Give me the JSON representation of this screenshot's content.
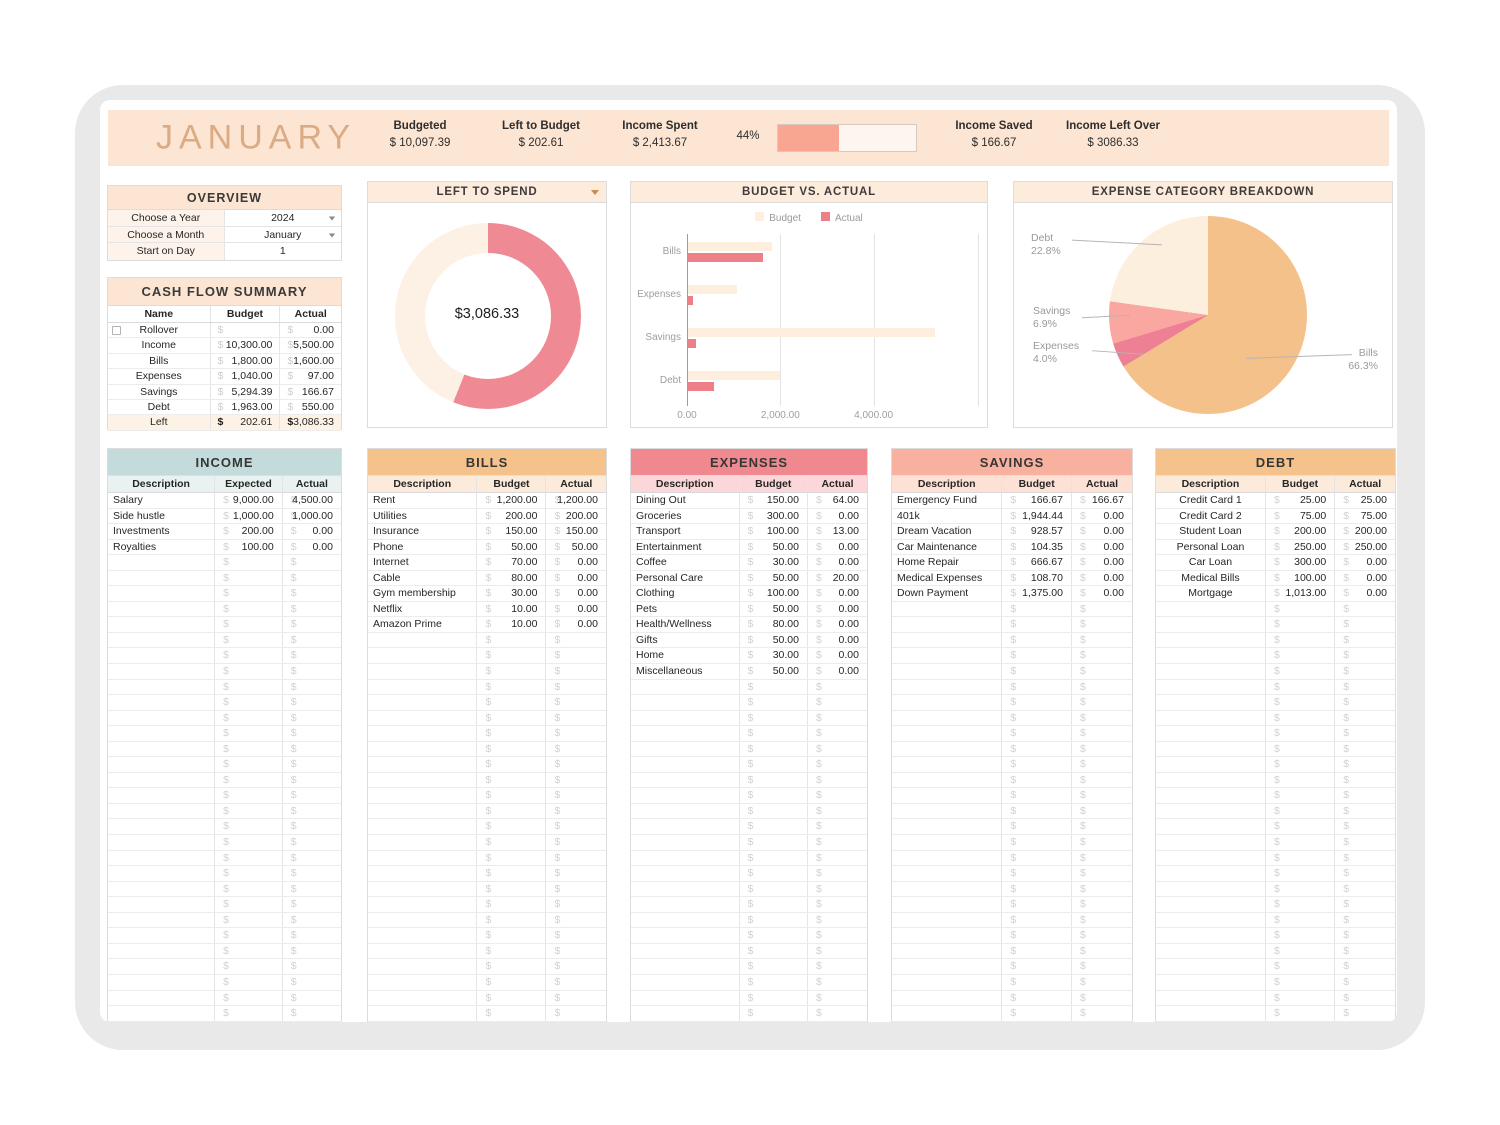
{
  "header": {
    "month": "JANUARY",
    "stats": [
      {
        "label": "Budgeted",
        "value": "$ 10,097.39"
      },
      {
        "label": "Left to Budget",
        "value": "$ 202.61"
      },
      {
        "label": "Income Spent",
        "value": "$ 2,413.67"
      }
    ],
    "progress": {
      "percent": 44,
      "percent_label": "44%",
      "bar_color": "#f8a592"
    },
    "stats2": [
      {
        "label": "Income Saved",
        "value": "$ 166.67"
      },
      {
        "label": "Income Left Over",
        "value": "$ 3086.33"
      }
    ]
  },
  "overview": {
    "title": "OVERVIEW",
    "rows": [
      {
        "label": "Choose a Year",
        "value": "2024",
        "dropdown": true
      },
      {
        "label": "Choose a Month",
        "value": "January",
        "dropdown": true
      },
      {
        "label": "Start on Day",
        "value": "1",
        "dropdown": false
      }
    ]
  },
  "cash_flow": {
    "title": "CASH FLOW SUMMARY",
    "columns": [
      "Name",
      "Budget",
      "Actual"
    ],
    "rows": [
      {
        "name": "Rollover",
        "budget": "",
        "actual": "0.00",
        "checkbox": true
      },
      {
        "name": "Income",
        "budget": "10,300.00",
        "actual": "5,500.00"
      },
      {
        "name": "Bills",
        "budget": "1,800.00",
        "actual": "1,600.00"
      },
      {
        "name": "Expenses",
        "budget": "1,040.00",
        "actual": "97.00"
      },
      {
        "name": "Savings",
        "budget": "5,294.39",
        "actual": "166.67"
      },
      {
        "name": "Debt",
        "budget": "1,963.00",
        "actual": "550.00"
      },
      {
        "name": "Left",
        "budget": "202.61",
        "actual": "3,086.33",
        "highlight": true
      }
    ]
  },
  "chart_data": [
    {
      "type": "donut",
      "title": "LEFT TO SPEND",
      "center_label": "$3,086.33",
      "segments": [
        {
          "name": "Left to Spend",
          "pct": 56.1,
          "color": "#ef8a94"
        },
        {
          "name": "Remaining",
          "pct": 43.9,
          "color": "#fdf0e4"
        }
      ]
    },
    {
      "type": "bar",
      "title": "BUDGET VS. ACTUAL",
      "orientation": "horizontal",
      "categories": [
        "Bills",
        "Expenses",
        "Savings",
        "Debt"
      ],
      "series": [
        {
          "name": "Budget",
          "color": "#fdeedd",
          "values": [
            1800,
            1040,
            5294.39,
            1963
          ]
        },
        {
          "name": "Actual",
          "color": "#ee7f89",
          "values": [
            1600,
            97,
            166.67,
            550
          ]
        }
      ],
      "x_ticks": [
        "0.00",
        "2,000.00",
        "4,000.00"
      ],
      "x_tick_values": [
        0,
        2000,
        4000
      ],
      "xlim": [
        0,
        6260
      ],
      "legend_position": "top"
    },
    {
      "type": "pie",
      "title": "EXPENSE CATEGORY BREAKDOWN",
      "slices": [
        {
          "label": "Bills",
          "pct": 66.3,
          "pct_label": "66.3%",
          "color": "#f5c18a"
        },
        {
          "label": "Expenses",
          "pct": 4.0,
          "pct_label": "4.0%",
          "color": "#ed8095"
        },
        {
          "label": "Savings",
          "pct": 6.9,
          "pct_label": "6.9%",
          "color": "#f9a7a0"
        },
        {
          "label": "Debt",
          "pct": 22.8,
          "pct_label": "22.8%",
          "color": "#fcefdd"
        }
      ]
    }
  ],
  "tables": [
    {
      "title": "INCOME",
      "columns": [
        "Description",
        "Expected",
        "Actual"
      ],
      "header_bg": "#c3dcdb",
      "sub_bg": "#e9f2f1",
      "center_desc": false,
      "rows": [
        [
          "Salary",
          "9,000.00",
          "4,500.00"
        ],
        [
          "Side hustle",
          "1,000.00",
          "1,000.00"
        ],
        [
          "Investments",
          "200.00",
          "0.00"
        ],
        [
          "Royalties",
          "100.00",
          "0.00"
        ]
      ]
    },
    {
      "title": "BILLS",
      "columns": [
        "Description",
        "Budget",
        "Actual"
      ],
      "header_bg": "#f5c28c",
      "sub_bg": "#fceada",
      "center_desc": false,
      "rows": [
        [
          "Rent",
          "1,200.00",
          "1,200.00"
        ],
        [
          "Utilities",
          "200.00",
          "200.00"
        ],
        [
          "Insurance",
          "150.00",
          "150.00"
        ],
        [
          "Phone",
          "50.00",
          "50.00"
        ],
        [
          "Internet",
          "70.00",
          "0.00"
        ],
        [
          "Cable",
          "80.00",
          "0.00"
        ],
        [
          "Gym membership",
          "30.00",
          "0.00"
        ],
        [
          "Netflix",
          "10.00",
          "0.00"
        ],
        [
          "Amazon Prime",
          "10.00",
          "0.00"
        ]
      ]
    },
    {
      "title": "EXPENSES",
      "columns": [
        "Description",
        "Budget",
        "Actual"
      ],
      "header_bg": "#f0898f",
      "sub_bg": "#fbd7d9",
      "center_desc": false,
      "rows": [
        [
          "Dining Out",
          "150.00",
          "64.00"
        ],
        [
          "Groceries",
          "300.00",
          "0.00"
        ],
        [
          "Transport",
          "100.00",
          "13.00"
        ],
        [
          "Entertainment",
          "50.00",
          "0.00"
        ],
        [
          "Coffee",
          "30.00",
          "0.00"
        ],
        [
          "Personal Care",
          "50.00",
          "20.00"
        ],
        [
          "Clothing",
          "100.00",
          "0.00"
        ],
        [
          "Pets",
          "50.00",
          "0.00"
        ],
        [
          "Health/Wellness",
          "80.00",
          "0.00"
        ],
        [
          "Gifts",
          "50.00",
          "0.00"
        ],
        [
          "Home",
          "30.00",
          "0.00"
        ],
        [
          "Miscellaneous",
          "50.00",
          "0.00"
        ]
      ]
    },
    {
      "title": "SAVINGS",
      "columns": [
        "Description",
        "Budget",
        "Actual"
      ],
      "header_bg": "#f8b19e",
      "sub_bg": "#fde1d5",
      "center_desc": false,
      "rows": [
        [
          "Emergency Fund",
          "166.67",
          "166.67"
        ],
        [
          "401k",
          "1,944.44",
          "0.00"
        ],
        [
          "Dream Vacation",
          "928.57",
          "0.00"
        ],
        [
          "Car Maintenance",
          "104.35",
          "0.00"
        ],
        [
          "Home Repair",
          "666.67",
          "0.00"
        ],
        [
          "Medical Expenses",
          "108.70",
          "0.00"
        ],
        [
          "Down Payment",
          "1,375.00",
          "0.00"
        ]
      ]
    },
    {
      "title": "DEBT",
      "columns": [
        "Description",
        "Budget",
        "Actual"
      ],
      "header_bg": "#f5c28c",
      "sub_bg": "#fceada",
      "center_desc": true,
      "rows": [
        [
          "Credit Card 1",
          "25.00",
          "25.00"
        ],
        [
          "Credit Card 2",
          "75.00",
          "75.00"
        ],
        [
          "Student Loan",
          "200.00",
          "200.00"
        ],
        [
          "Personal Loan",
          "250.00",
          "250.00"
        ],
        [
          "Car Loan",
          "300.00",
          "0.00"
        ],
        [
          "Medical Bills",
          "100.00",
          "0.00"
        ],
        [
          "Mortgage",
          "1,013.00",
          "0.00"
        ]
      ]
    }
  ]
}
